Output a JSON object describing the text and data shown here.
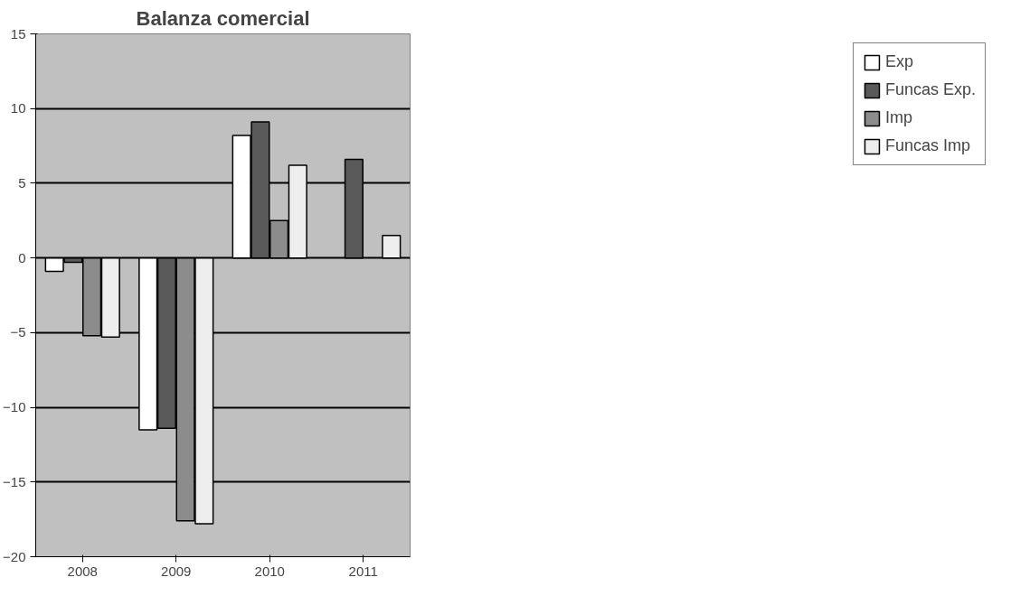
{
  "chart_data": {
    "type": "bar",
    "title": "Balanza comercial",
    "categories": [
      "2008",
      "2009",
      "2010",
      "2011"
    ],
    "series": [
      {
        "name": "Exp",
        "color": "#ffffff",
        "values": [
          -0.9,
          -11.5,
          8.2,
          null
        ]
      },
      {
        "name": "Funcas Exp.",
        "color": "#5a5a5a",
        "values": [
          -0.3,
          -11.4,
          9.1,
          6.6
        ]
      },
      {
        "name": "Imp",
        "color": "#8c8c8c",
        "values": [
          -5.2,
          -17.6,
          2.5,
          null
        ]
      },
      {
        "name": "Funcas Imp",
        "color": "#eeeeee",
        "values": [
          -5.3,
          -17.8,
          6.2,
          1.5
        ]
      }
    ],
    "ylim": [
      -20,
      15
    ],
    "yticks": [
      -20,
      -15,
      -10,
      -5,
      0,
      5,
      10,
      15
    ],
    "grid": "y",
    "legend": "right"
  }
}
